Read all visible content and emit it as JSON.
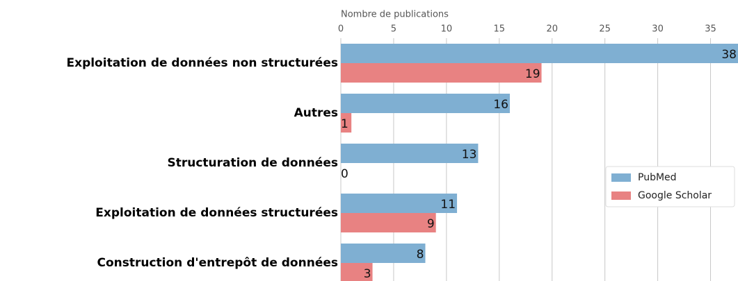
{
  "chart_data": {
    "type": "barh",
    "x_label": "Nombre de publications",
    "categories": [
      "Exploitation de données non structurées",
      "Autres",
      "Structuration de données",
      "Exploitation de données structurées",
      "Construction d'entrepôt de données"
    ],
    "series": [
      {
        "name": "PubMed",
        "color": "#7fafd2",
        "values": [
          38,
          16,
          13,
          11,
          8
        ]
      },
      {
        "name": "Google Scholar",
        "color": "#e88282",
        "values": [
          19,
          1,
          0,
          9,
          3
        ]
      }
    ],
    "xlim": [
      0,
      37.6
    ],
    "xticks": [
      0,
      5,
      10,
      15,
      20,
      25,
      30,
      35
    ],
    "grid": true,
    "legend": "right"
  }
}
